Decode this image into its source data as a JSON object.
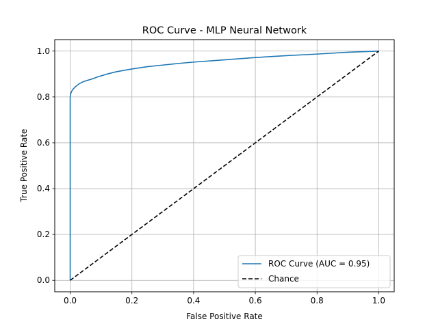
{
  "chart_data": {
    "type": "line",
    "title": "ROC Curve - MLP Neural Network",
    "xlabel": "False Positive Rate",
    "ylabel": "True Positive Rate",
    "xlim": [
      -0.05,
      1.05
    ],
    "ylim": [
      -0.05,
      1.05
    ],
    "xticks": [
      0.0,
      0.2,
      0.4,
      0.6,
      0.8,
      1.0
    ],
    "xtick_labels": [
      "0.0",
      "0.2",
      "0.4",
      "0.6",
      "0.8",
      "1.0"
    ],
    "yticks": [
      0.0,
      0.2,
      0.4,
      0.6,
      0.8,
      1.0
    ],
    "ytick_labels": [
      "0.0",
      "0.2",
      "0.4",
      "0.6",
      "0.8",
      "1.0"
    ],
    "grid": true,
    "legend_position": "lower-right",
    "series": [
      {
        "name": "ROC Curve (AUC = 0.95)",
        "color": "#1f77b4",
        "style": "solid",
        "x": [
          0.0,
          0.0,
          0.0,
          0.002,
          0.005,
          0.01,
          0.02,
          0.03,
          0.04,
          0.05,
          0.07,
          0.09,
          0.12,
          0.15,
          0.2,
          0.25,
          0.3,
          0.35,
          0.4,
          0.5,
          0.6,
          0.7,
          0.8,
          0.9,
          1.0
        ],
        "y": [
          0.0,
          0.5,
          0.8,
          0.815,
          0.825,
          0.835,
          0.848,
          0.858,
          0.865,
          0.87,
          0.878,
          0.888,
          0.9,
          0.91,
          0.922,
          0.932,
          0.939,
          0.946,
          0.952,
          0.962,
          0.972,
          0.98,
          0.987,
          0.995,
          1.0
        ]
      },
      {
        "name": "Chance",
        "color": "#000000",
        "style": "dashed",
        "x": [
          0.0,
          1.0
        ],
        "y": [
          0.0,
          1.0
        ]
      }
    ]
  }
}
